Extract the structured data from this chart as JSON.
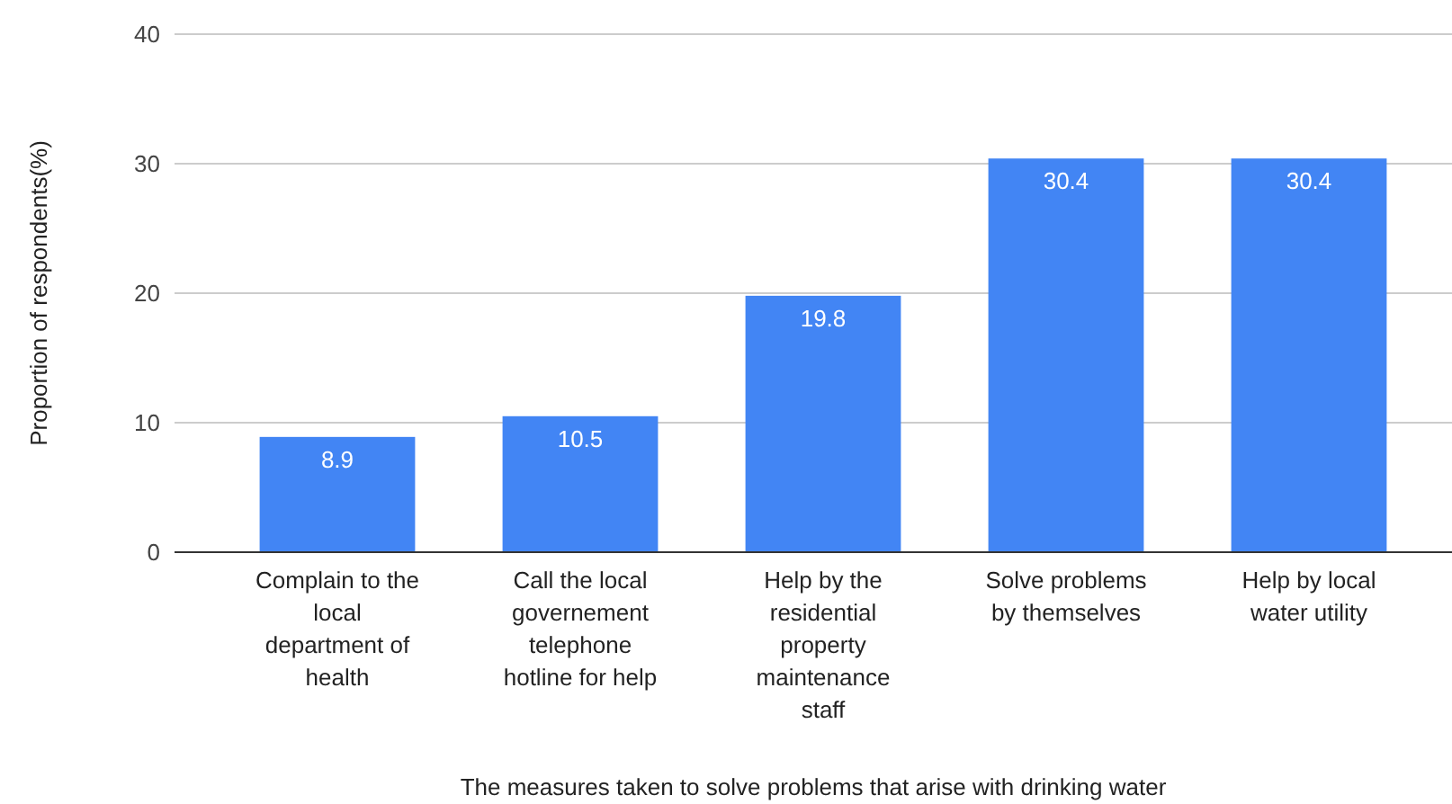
{
  "chart_data": {
    "type": "bar",
    "xlabel": "The measures taken to solve problems that arise with drinking water",
    "ylabel": "Proportion of respondents(%)",
    "categories": [
      "Complain to the local department of health",
      "Call the local governement telephone hotline for help",
      "Help by the residential property maintenance staff",
      "Solve problems by themselves",
      "Help by local water utility"
    ],
    "values": [
      8.9,
      10.5,
      19.8,
      30.4,
      30.4
    ],
    "color": "#4285f4",
    "ylim": [
      0,
      40
    ],
    "yticks": [
      0,
      10,
      20,
      30,
      40
    ],
    "grid": "y",
    "data_labels": true
  }
}
